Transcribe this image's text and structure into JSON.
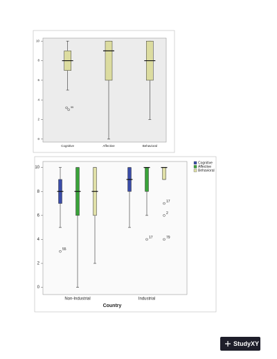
{
  "chart_data": [
    {
      "type": "box",
      "categories": [
        "Cognitive",
        "Affective",
        "Behavioral"
      ],
      "series": [
        {
          "color": "#dcdca0",
          "boxes": [
            {
              "min": 5,
              "q1": 7,
              "median": 8,
              "q3": 9,
              "max": 10,
              "outliers": [
                {
                  "value": 3.2
                },
                {
                  "value": 3,
                  "label": "55"
                }
              ]
            },
            {
              "min": 0,
              "q1": 6,
              "median": 9,
              "q3": 10,
              "max": 10,
              "outliers": []
            },
            {
              "min": 2,
              "q1": 6,
              "median": 8,
              "q3": 10,
              "max": 10,
              "outliers": []
            }
          ]
        }
      ],
      "ylim": [
        -0.3,
        10.3
      ],
      "yticks": [
        0,
        2,
        4,
        6,
        8,
        10
      ]
    },
    {
      "type": "box",
      "categories": [
        "Non-Industrial",
        "Industrial"
      ],
      "xlabel": "Country",
      "legend": "right",
      "series": [
        {
          "name": "Cognitive",
          "color": "#3a4ca8",
          "boxes": [
            {
              "min": 5,
              "q1": 7,
              "median": 8,
              "q3": 9,
              "max": 10,
              "outliers": [
                {
                  "value": 3,
                  "label": "55"
                }
              ]
            },
            {
              "min": 5,
              "q1": 8,
              "median": 9,
              "q3": 10,
              "max": 10,
              "outliers": []
            }
          ]
        },
        {
          "name": "Affective",
          "color": "#3aa33a",
          "boxes": [
            {
              "min": 0,
              "q1": 6,
              "median": 8,
              "q3": 10,
              "max": 10,
              "outliers": []
            },
            {
              "min": 6,
              "q1": 8,
              "median": 10,
              "q3": 10,
              "max": 10,
              "outliers": [
                {
                  "value": 4,
                  "label": "17"
                }
              ]
            }
          ]
        },
        {
          "name": "Behavioral",
          "color": "#e0e0a8",
          "boxes": [
            {
              "min": 2,
              "q1": 6,
              "median": 8,
              "q3": 10,
              "max": 10,
              "outliers": []
            },
            {
              "min": 9,
              "q1": 9,
              "median": 10,
              "q3": 10,
              "max": 10,
              "outliers": [
                {
                  "value": 7,
                  "label": "17"
                },
                {
                  "value": 6,
                  "label": "2"
                },
                {
                  "value": 4,
                  "label": "79"
                }
              ]
            }
          ]
        }
      ],
      "ylim": [
        -0.6,
        10.5
      ],
      "yticks": [
        0,
        2,
        4,
        6,
        8,
        10
      ]
    }
  ],
  "watermark": "StudyXY"
}
